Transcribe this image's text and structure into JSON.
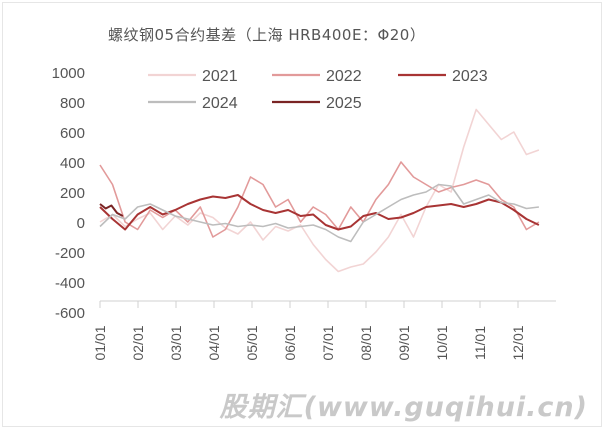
{
  "chart_data": {
    "type": "line",
    "title": "螺纹钢05合约基差（上海 HRB400E：Φ20）",
    "xlabel": "",
    "ylabel": "",
    "ylim": [
      -600,
      1000
    ],
    "yticks": [
      "1000",
      "800",
      "600",
      "400",
      "200",
      "0",
      "-200",
      "-400",
      "-600"
    ],
    "ytick_values": [
      1000,
      800,
      600,
      400,
      200,
      0,
      -200,
      -400,
      -600
    ],
    "xticks": [
      "01/01",
      "02/01",
      "03/01",
      "04/01",
      "05/01",
      "06/01",
      "07/01",
      "08/01",
      "09/01",
      "10/01",
      "11/01",
      "12/01"
    ],
    "x_unit": "months since 01/01",
    "grid": false,
    "legend_placement": "top",
    "series": [
      {
        "name": "2021",
        "color": "#f2d4d4",
        "x_step": 0.33,
        "x_start": 0,
        "values": [
          0,
          50,
          -30,
          20,
          60,
          -50,
          40,
          -20,
          60,
          30,
          -40,
          -80,
          0,
          -120,
          -30,
          -60,
          -20,
          -150,
          -250,
          -330,
          -300,
          -280,
          -200,
          -100,
          50,
          -100,
          100,
          250,
          200,
          500,
          750,
          650,
          550,
          600,
          450,
          480
        ]
      },
      {
        "name": "2022",
        "color": "#e29a9a",
        "x_step": 0.33,
        "x_start": 0,
        "values": [
          380,
          250,
          0,
          -50,
          80,
          30,
          80,
          0,
          100,
          -100,
          -50,
          100,
          300,
          250,
          100,
          150,
          0,
          100,
          50,
          -50,
          100,
          0,
          150,
          250,
          400,
          300,
          250,
          200,
          230,
          250,
          280,
          250,
          150,
          100,
          -50,
          0
        ]
      },
      {
        "name": "2023",
        "color": "#a83434",
        "x_step": 0.33,
        "x_start": 0,
        "values": [
          100,
          20,
          -50,
          50,
          100,
          50,
          80,
          120,
          150,
          170,
          160,
          180,
          120,
          80,
          60,
          80,
          40,
          50,
          -20,
          -50,
          -30,
          40,
          60,
          20,
          30,
          60,
          100,
          110,
          120,
          100,
          120,
          150,
          130,
          80,
          20,
          -20
        ]
      },
      {
        "name": "2024",
        "color": "#bdbdbd",
        "x_step": 0.33,
        "x_start": 0,
        "values": [
          -30,
          50,
          20,
          100,
          120,
          80,
          40,
          20,
          0,
          -20,
          -10,
          -30,
          -20,
          -30,
          -10,
          -40,
          -30,
          -20,
          -50,
          -100,
          -130,
          0,
          50,
          100,
          150,
          180,
          200,
          250,
          240,
          120,
          150,
          180,
          130,
          120,
          90,
          100
        ]
      },
      {
        "name": "2025",
        "color": "#7a2424",
        "x_step": 0.15,
        "x_start": 0,
        "values": [
          120,
          90,
          110,
          60,
          40
        ]
      }
    ]
  },
  "watermark": "股期汇(www.guqihui.cn)"
}
